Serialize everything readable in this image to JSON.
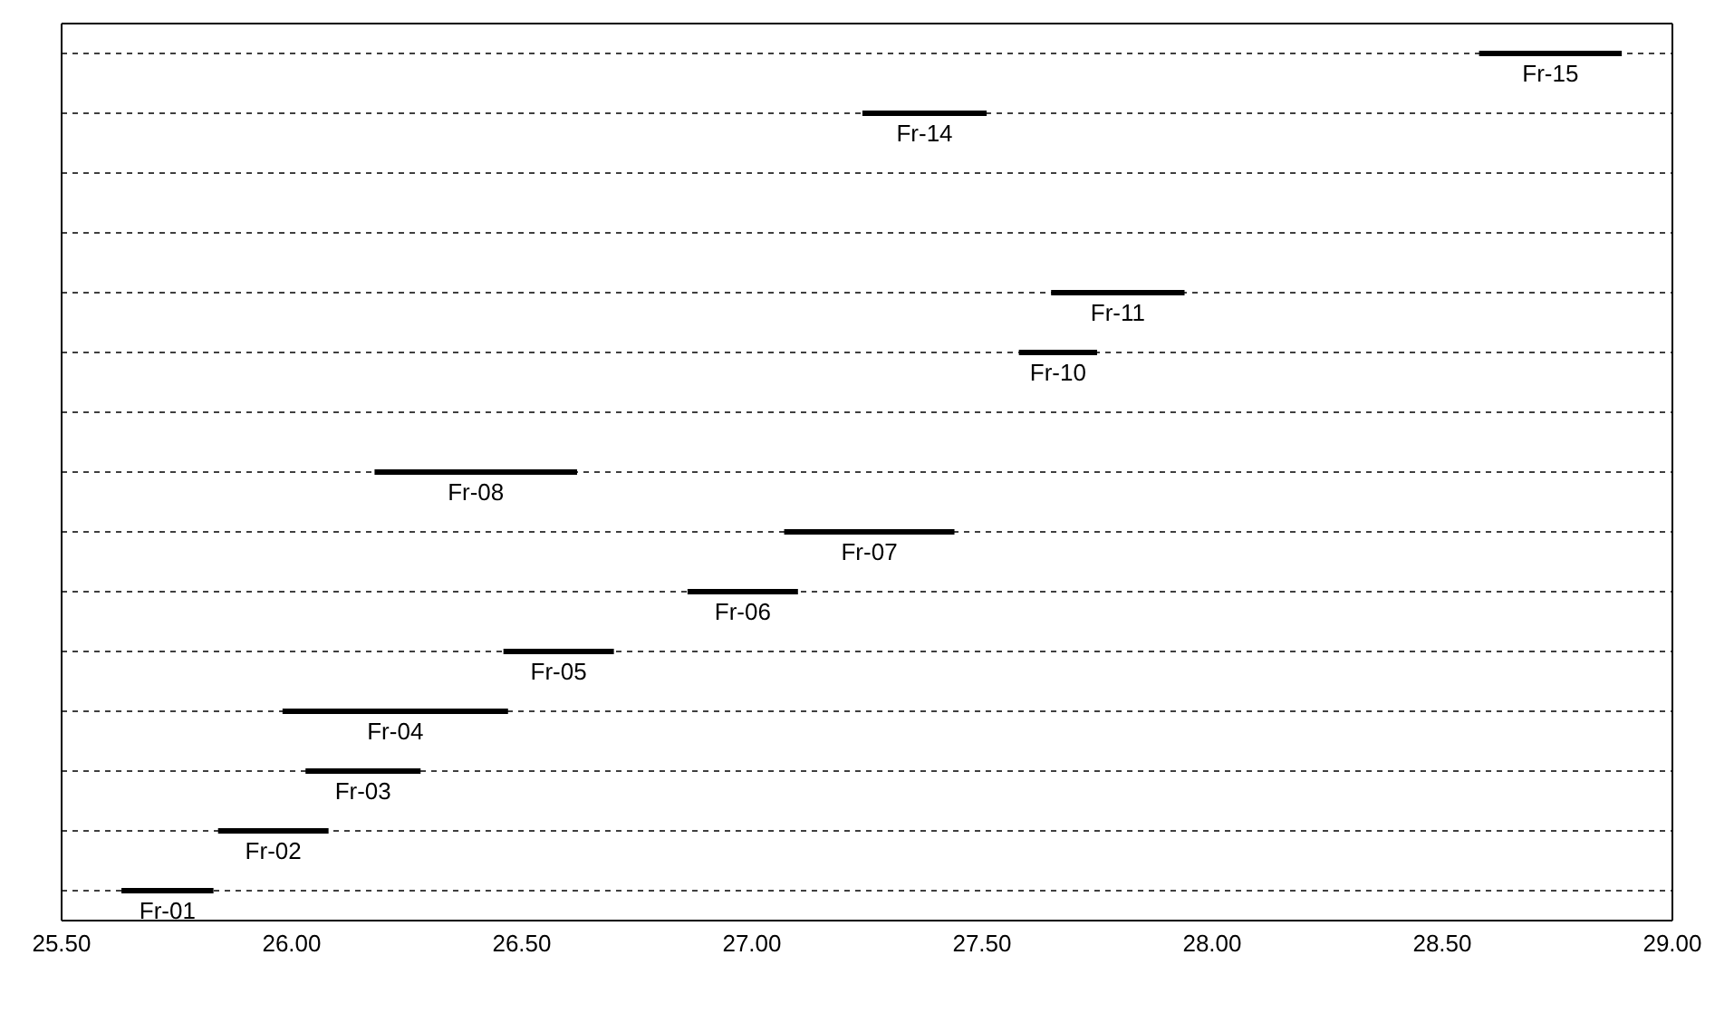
{
  "chart_data": {
    "type": "bar",
    "orientation": "horizontal",
    "categories": [
      "Fr-15",
      "Fr-14",
      null,
      null,
      "Fr-11",
      "Fr-10",
      null,
      "Fr-08",
      "Fr-07",
      "Fr-06",
      "Fr-05",
      "Fr-04",
      "Fr-03",
      "Fr-02",
      "Fr-01"
    ],
    "base": [
      28.58,
      27.24,
      null,
      null,
      27.65,
      27.58,
      null,
      26.18,
      27.07,
      26.86,
      26.46,
      25.98,
      26.03,
      25.84,
      25.63
    ],
    "values": [
      0.31,
      0.27,
      null,
      null,
      0.29,
      0.17,
      null,
      0.44,
      0.37,
      0.24,
      0.24,
      0.49,
      0.25,
      0.24,
      0.2
    ],
    "color": "#000000",
    "xlim": [
      25.5,
      29
    ],
    "xticks": [
      {
        "value": 25.5,
        "label": "25.50"
      },
      {
        "value": 26,
        "label": "26.00"
      },
      {
        "value": 26.5,
        "label": "26.50"
      },
      {
        "value": 27,
        "label": "27.00"
      },
      {
        "value": 27.5,
        "label": "27.50"
      },
      {
        "value": 28,
        "label": "28.00"
      },
      {
        "value": 28.5,
        "label": "28.50"
      },
      {
        "value": 29,
        "label": "29.00"
      }
    ],
    "grid": "y",
    "tick_labels": "x"
  }
}
